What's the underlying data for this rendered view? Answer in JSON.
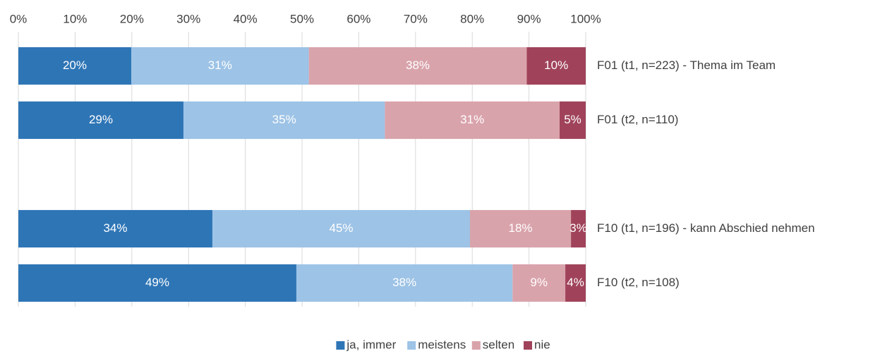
{
  "chart_data": {
    "type": "stacked_bar_horizontal",
    "categories": [
      "F01 (t1, n=223) - Thema im Team",
      "F01 (t2, n=110)",
      null,
      "F10 (t1, n=196) - kann Abschied nehmen",
      "F10 (t2, n=108)"
    ],
    "series": [
      {
        "name": "ja, immer",
        "color": "#2e75b6",
        "values": [
          19.9,
          29.1,
          null,
          34.2,
          49.0
        ],
        "value_labels": [
          "20%",
          "29%",
          null,
          "34%",
          "49%"
        ]
      },
      {
        "name": "meistens",
        "color": "#9dc3e6",
        "values": [
          31.3,
          35.5,
          null,
          45.4,
          38.1
        ],
        "value_labels": [
          "31%",
          "35%",
          null,
          "45%",
          "38%"
        ]
      },
      {
        "name": "selten",
        "color": "#d9a3ab",
        "values": [
          38.4,
          30.8,
          null,
          17.8,
          9.3
        ],
        "value_labels": [
          "38%",
          "31%",
          null,
          "18%",
          "9%"
        ]
      },
      {
        "name": "nie",
        "color": "#a0435a",
        "values": [
          10.4,
          4.6,
          null,
          2.6,
          3.6
        ],
        "value_labels": [
          "10%",
          "5%",
          null,
          "3%",
          "4%"
        ]
      }
    ],
    "xlim": [
      0,
      100
    ],
    "xticks": [
      {
        "value": 0,
        "label": "0%"
      },
      {
        "value": 10,
        "label": "10%"
      },
      {
        "value": 20,
        "label": "20%"
      },
      {
        "value": 30,
        "label": "30%"
      },
      {
        "value": 40,
        "label": "40%"
      },
      {
        "value": 50,
        "label": "50%"
      },
      {
        "value": 60,
        "label": "60%"
      },
      {
        "value": 70,
        "label": "70%"
      },
      {
        "value": 80,
        "label": "80%"
      },
      {
        "value": 90,
        "label": "90%"
      },
      {
        "value": 100,
        "label": "100%"
      }
    ],
    "grid": true,
    "legend": "bottom"
  }
}
